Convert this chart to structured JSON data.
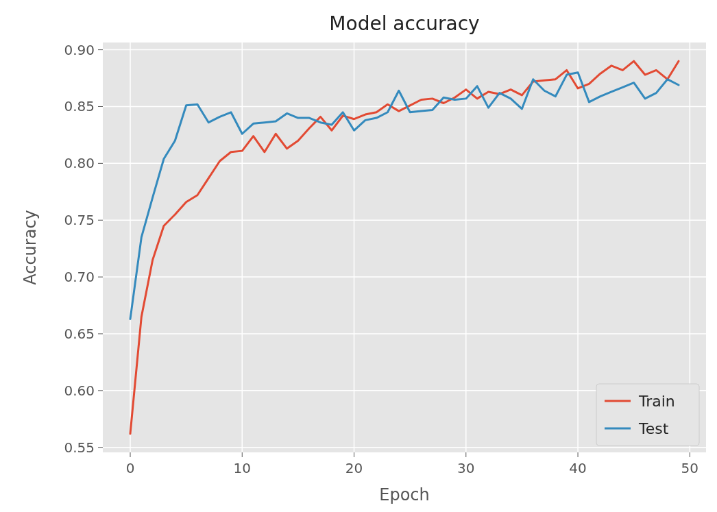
{
  "chart_data": {
    "type": "line",
    "title": "Model accuracy",
    "xlabel": "Epoch",
    "ylabel": "Accuracy",
    "x": [
      0,
      1,
      2,
      3,
      4,
      5,
      6,
      7,
      8,
      9,
      10,
      11,
      12,
      13,
      14,
      15,
      16,
      17,
      18,
      19,
      20,
      21,
      22,
      23,
      24,
      25,
      26,
      27,
      28,
      29,
      30,
      31,
      32,
      33,
      34,
      35,
      36,
      37,
      38,
      39,
      40,
      41,
      42,
      43,
      44,
      45,
      46,
      47,
      48,
      49
    ],
    "series": [
      {
        "name": "Train",
        "color": "#e24a33",
        "values": [
          0.562,
          0.665,
          0.715,
          0.745,
          0.755,
          0.766,
          0.772,
          0.787,
          0.802,
          0.81,
          0.811,
          0.824,
          0.81,
          0.826,
          0.813,
          0.82,
          0.831,
          0.841,
          0.829,
          0.842,
          0.839,
          0.843,
          0.845,
          0.852,
          0.846,
          0.851,
          0.856,
          0.857,
          0.853,
          0.858,
          0.865,
          0.857,
          0.863,
          0.861,
          0.865,
          0.86,
          0.872,
          0.873,
          0.874,
          0.882,
          0.866,
          0.87,
          0.879,
          0.886,
          0.882,
          0.89,
          0.878,
          0.882,
          0.874,
          0.89
        ]
      },
      {
        "name": "Test",
        "color": "#348abd",
        "values": [
          0.663,
          0.735,
          0.77,
          0.804,
          0.82,
          0.851,
          0.852,
          0.836,
          0.841,
          0.845,
          0.826,
          0.835,
          0.836,
          0.837,
          0.844,
          0.84,
          0.84,
          0.836,
          0.834,
          0.845,
          0.829,
          0.838,
          0.84,
          0.845,
          0.864,
          0.845,
          0.846,
          0.847,
          0.858,
          0.856,
          0.857,
          0.868,
          0.849,
          0.862,
          0.857,
          0.848,
          0.874,
          0.864,
          0.859,
          0.878,
          0.88,
          0.854,
          0.859,
          0.863,
          0.867,
          0.871,
          0.857,
          0.862,
          0.874,
          0.869
        ]
      }
    ],
    "xlim": [
      -2.45,
      51.45
    ],
    "ylim": [
      0.5456,
      0.9064
    ],
    "xticks": [
      0,
      10,
      20,
      30,
      40,
      50
    ],
    "yticks": [
      0.55,
      {
        "value": 0.6,
        "label": "0.60"
      },
      0.65,
      {
        "value": 0.7,
        "label": "0.70"
      },
      0.75,
      {
        "value": 0.8,
        "label": "0.80"
      },
      0.85,
      {
        "value": 0.9,
        "label": "0.90"
      }
    ],
    "grid": true,
    "legend": "bottom right",
    "line_style": "solid"
  }
}
